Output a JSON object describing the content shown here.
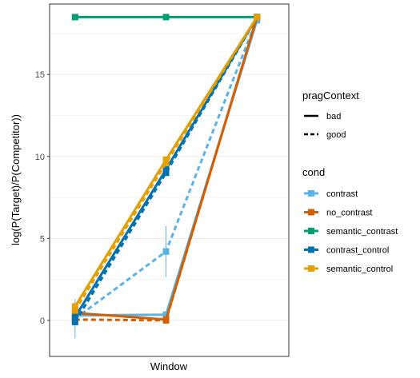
{
  "chart_data": {
    "type": "line",
    "xlabel": "Window",
    "ylabel": "log(P(Target)/P(Competitor))",
    "ylim": [
      -2.2,
      19.3
    ],
    "x": [
      1,
      2,
      3
    ],
    "xlim": [
      0.72,
      3.35
    ],
    "yticks": [
      0,
      5,
      10,
      15
    ],
    "grid": true,
    "legend_position": "right",
    "legends": [
      {
        "title": "pragContext",
        "entries": [
          {
            "label": "bad",
            "linetype": "solid"
          },
          {
            "label": "good",
            "linetype": "dashed"
          }
        ]
      },
      {
        "title": "cond",
        "entries": [
          {
            "label": "contrast",
            "color": "#56B4E9"
          },
          {
            "label": "no_contrast",
            "color": "#D55E00"
          },
          {
            "label": "semantic_contrast",
            "color": "#009E73"
          },
          {
            "label": "contrast_control",
            "color": "#0072B2"
          },
          {
            "label": "semantic_control",
            "color": "#E69F00"
          }
        ]
      }
    ],
    "series": [
      {
        "cond": "semantic_contrast",
        "pragContext": "bad",
        "color": "#009E73",
        "dashed": false,
        "values": [
          18.5,
          18.5,
          18.5
        ]
      },
      {
        "cond": "contrast",
        "pragContext": "bad",
        "color": "#56B4E9",
        "dashed": false,
        "values": [
          0.3,
          0.35,
          18.3
        ],
        "err": [
          null,
          null,
          null
        ]
      },
      {
        "cond": "contrast",
        "pragContext": "good",
        "color": "#56B4E9",
        "dashed": true,
        "values": [
          0.1,
          4.2,
          18.4
        ],
        "err": [
          1.2,
          1.55,
          null
        ]
      },
      {
        "cond": "no_contrast",
        "pragContext": "bad",
        "color": "#D55E00",
        "dashed": false,
        "values": [
          0.45,
          0.05,
          18.5
        ]
      },
      {
        "cond": "no_contrast",
        "pragContext": "good",
        "color": "#D55E00",
        "dashed": true,
        "values": [
          0.05,
          0.0,
          18.5
        ]
      },
      {
        "cond": "contrast_control",
        "pragContext": "bad",
        "color": "#0072B2",
        "dashed": false,
        "values": [
          0.2,
          9.2,
          18.5
        ]
      },
      {
        "cond": "contrast_control",
        "pragContext": "good",
        "color": "#0072B2",
        "dashed": true,
        "values": [
          -0.1,
          9.0,
          18.5
        ]
      },
      {
        "cond": "semantic_control",
        "pragContext": "bad",
        "color": "#E69F00",
        "dashed": false,
        "values": [
          0.85,
          9.8,
          18.5
        ]
      },
      {
        "cond": "semantic_control",
        "pragContext": "good",
        "color": "#E69F00",
        "dashed": true,
        "values": [
          0.6,
          9.6,
          18.5
        ]
      }
    ]
  }
}
